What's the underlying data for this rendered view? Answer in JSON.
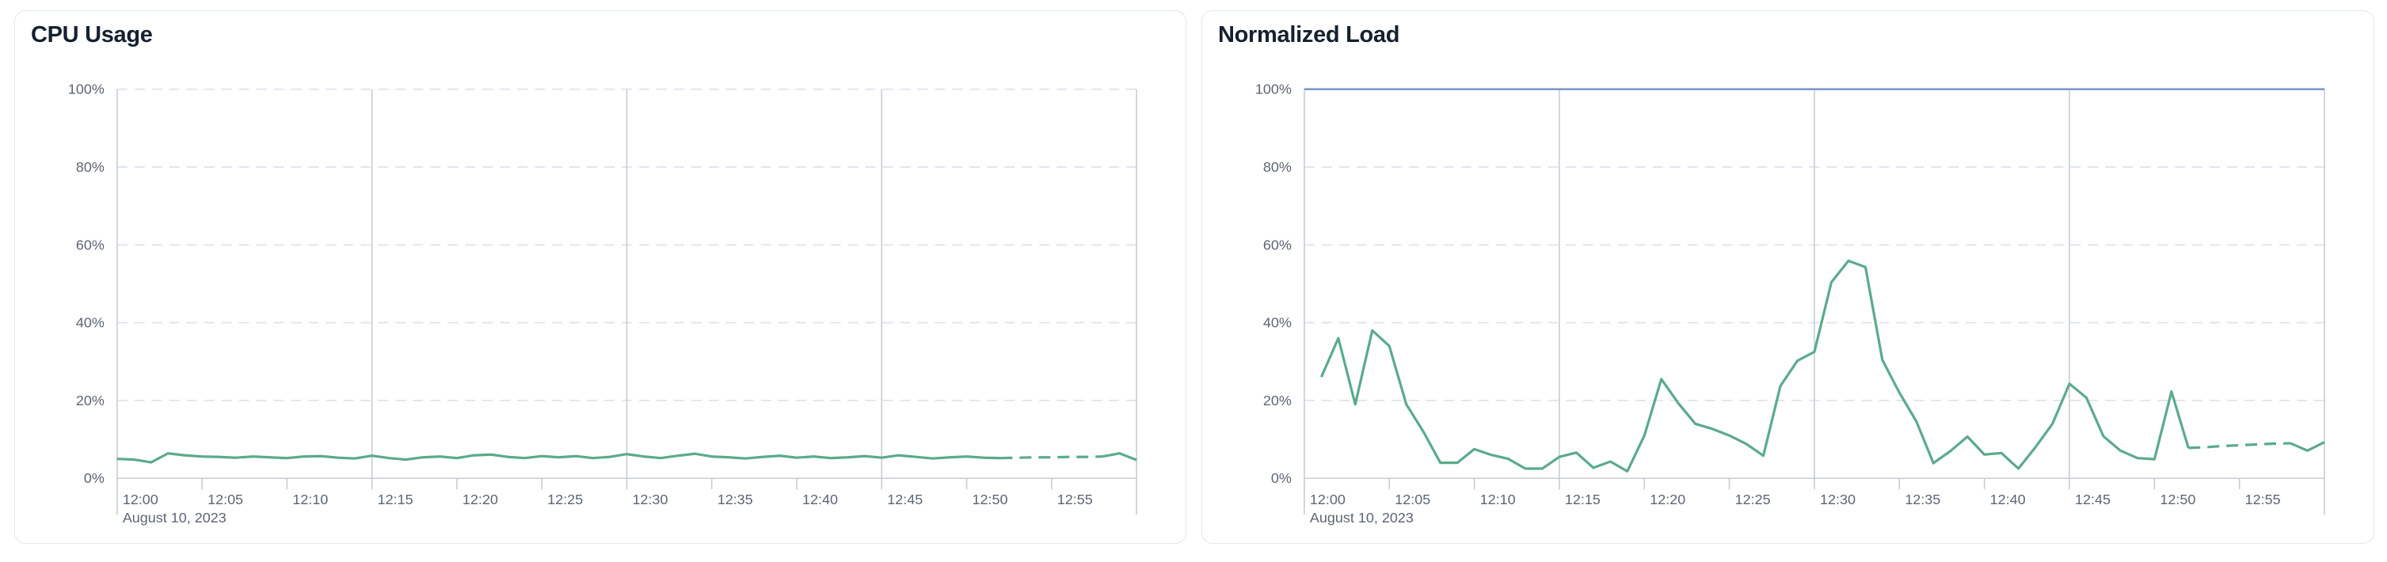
{
  "page": {
    "background": "#ffffff"
  },
  "colors": {
    "series_green": "#5aab8a",
    "limit_blue": "#7e99c8",
    "gridline_solid": "#c7ccd4",
    "gridline_dashed": "#e2e5ee",
    "axis_label": "#5d6673",
    "title_text": "#16202e",
    "card_border": "#e1e5ea"
  },
  "chart_data": [
    {
      "type": "line",
      "title": "CPU Usage",
      "ylabel": "percent",
      "ylim": [
        0,
        100
      ],
      "grid": "horizontal-dashed, vertical-15min-solid",
      "legend": "none",
      "y_ticks": [
        "100%",
        "80%",
        "60%",
        "40%",
        "20%",
        "0%"
      ],
      "y_tick_values": [
        100,
        80,
        60,
        40,
        20,
        0
      ],
      "x_tick_labels": [
        "12:00",
        "12:05",
        "12:10",
        "12:15",
        "12:20",
        "12:25",
        "12:30",
        "12:35",
        "12:40",
        "12:45",
        "12:50",
        "12:55"
      ],
      "x_tick_minutes": [
        0,
        5,
        10,
        15,
        20,
        25,
        30,
        35,
        40,
        45,
        50,
        55
      ],
      "major_gridline_minutes": [
        15,
        30,
        45,
        60
      ],
      "x_domain_minutes": [
        0,
        60
      ],
      "date_label": "August 10, 2023",
      "series": [
        {
          "name": "cpu-usage",
          "color": "#5aab8a",
          "start_minute": 0,
          "step_minutes": 1,
          "dashed_from_minute": 52,
          "dashed_to_minute": 58,
          "values": [
            5.0,
            4.8,
            4.1,
            6.4,
            5.9,
            5.6,
            5.5,
            5.3,
            5.6,
            5.4,
            5.2,
            5.6,
            5.7,
            5.3,
            5.1,
            5.8,
            5.2,
            4.8,
            5.4,
            5.6,
            5.2,
            5.9,
            6.1,
            5.5,
            5.2,
            5.7,
            5.4,
            5.7,
            5.2,
            5.5,
            6.2,
            5.6,
            5.2,
            5.8,
            6.3,
            5.6,
            5.4,
            5.1,
            5.5,
            5.8,
            5.3,
            5.6,
            5.2,
            5.4,
            5.7,
            5.3,
            5.9,
            5.5,
            5.1,
            5.4,
            5.6,
            5.3,
            5.2,
            5.3,
            5.4,
            5.4,
            5.5,
            5.5,
            5.6,
            6.4,
            4.7
          ]
        }
      ]
    },
    {
      "type": "line",
      "title": "Normalized Load",
      "ylabel": "percent",
      "ylim": [
        0,
        100
      ],
      "grid": "horizontal-dashed, vertical-15min-solid",
      "legend": "none",
      "y_ticks": [
        "100%",
        "80%",
        "60%",
        "40%",
        "20%",
        "0%"
      ],
      "y_tick_values": [
        100,
        80,
        60,
        40,
        20,
        0
      ],
      "x_tick_labels": [
        "12:00",
        "12:05",
        "12:10",
        "12:15",
        "12:20",
        "12:25",
        "12:30",
        "12:35",
        "12:40",
        "12:45",
        "12:50",
        "12:55"
      ],
      "x_tick_minutes": [
        0,
        5,
        10,
        15,
        20,
        25,
        30,
        35,
        40,
        45,
        50,
        55
      ],
      "major_gridline_minutes": [
        15,
        30,
        45,
        60
      ],
      "x_domain_minutes": [
        0,
        60
      ],
      "date_label": "August 10, 2023",
      "series": [
        {
          "name": "limit-100-percent",
          "color": "#7e99c8",
          "start_minute": 0,
          "step_minutes": 60,
          "values": [
            100,
            100
          ]
        },
        {
          "name": "normalized-load",
          "color": "#5aab8a",
          "start_minute": 1,
          "step_minutes": 1,
          "dashed_from_minute": 52,
          "dashed_to_minute": 58,
          "values": [
            26,
            36,
            19,
            38,
            34,
            19,
            12,
            4,
            4,
            7.5,
            6,
            5,
            2.5,
            2.5,
            5.5,
            6.6,
            2.7,
            4.3,
            1.8,
            11,
            25.5,
            19.3,
            14,
            12.7,
            11,
            8.8,
            5.8,
            23.7,
            30.2,
            32.5,
            50.4,
            55.9,
            54.3,
            30.4,
            22,
            14.6,
            3.9,
            7,
            10.7,
            6.1,
            6.5,
            2.5,
            8,
            14,
            24.3,
            20.7,
            10.8,
            7.1,
            5.2,
            4.9,
            22.3,
            7.8,
            8,
            8.3,
            8.5,
            8.7,
            8.9,
            9,
            7.1,
            9.3
          ]
        }
      ]
    }
  ]
}
